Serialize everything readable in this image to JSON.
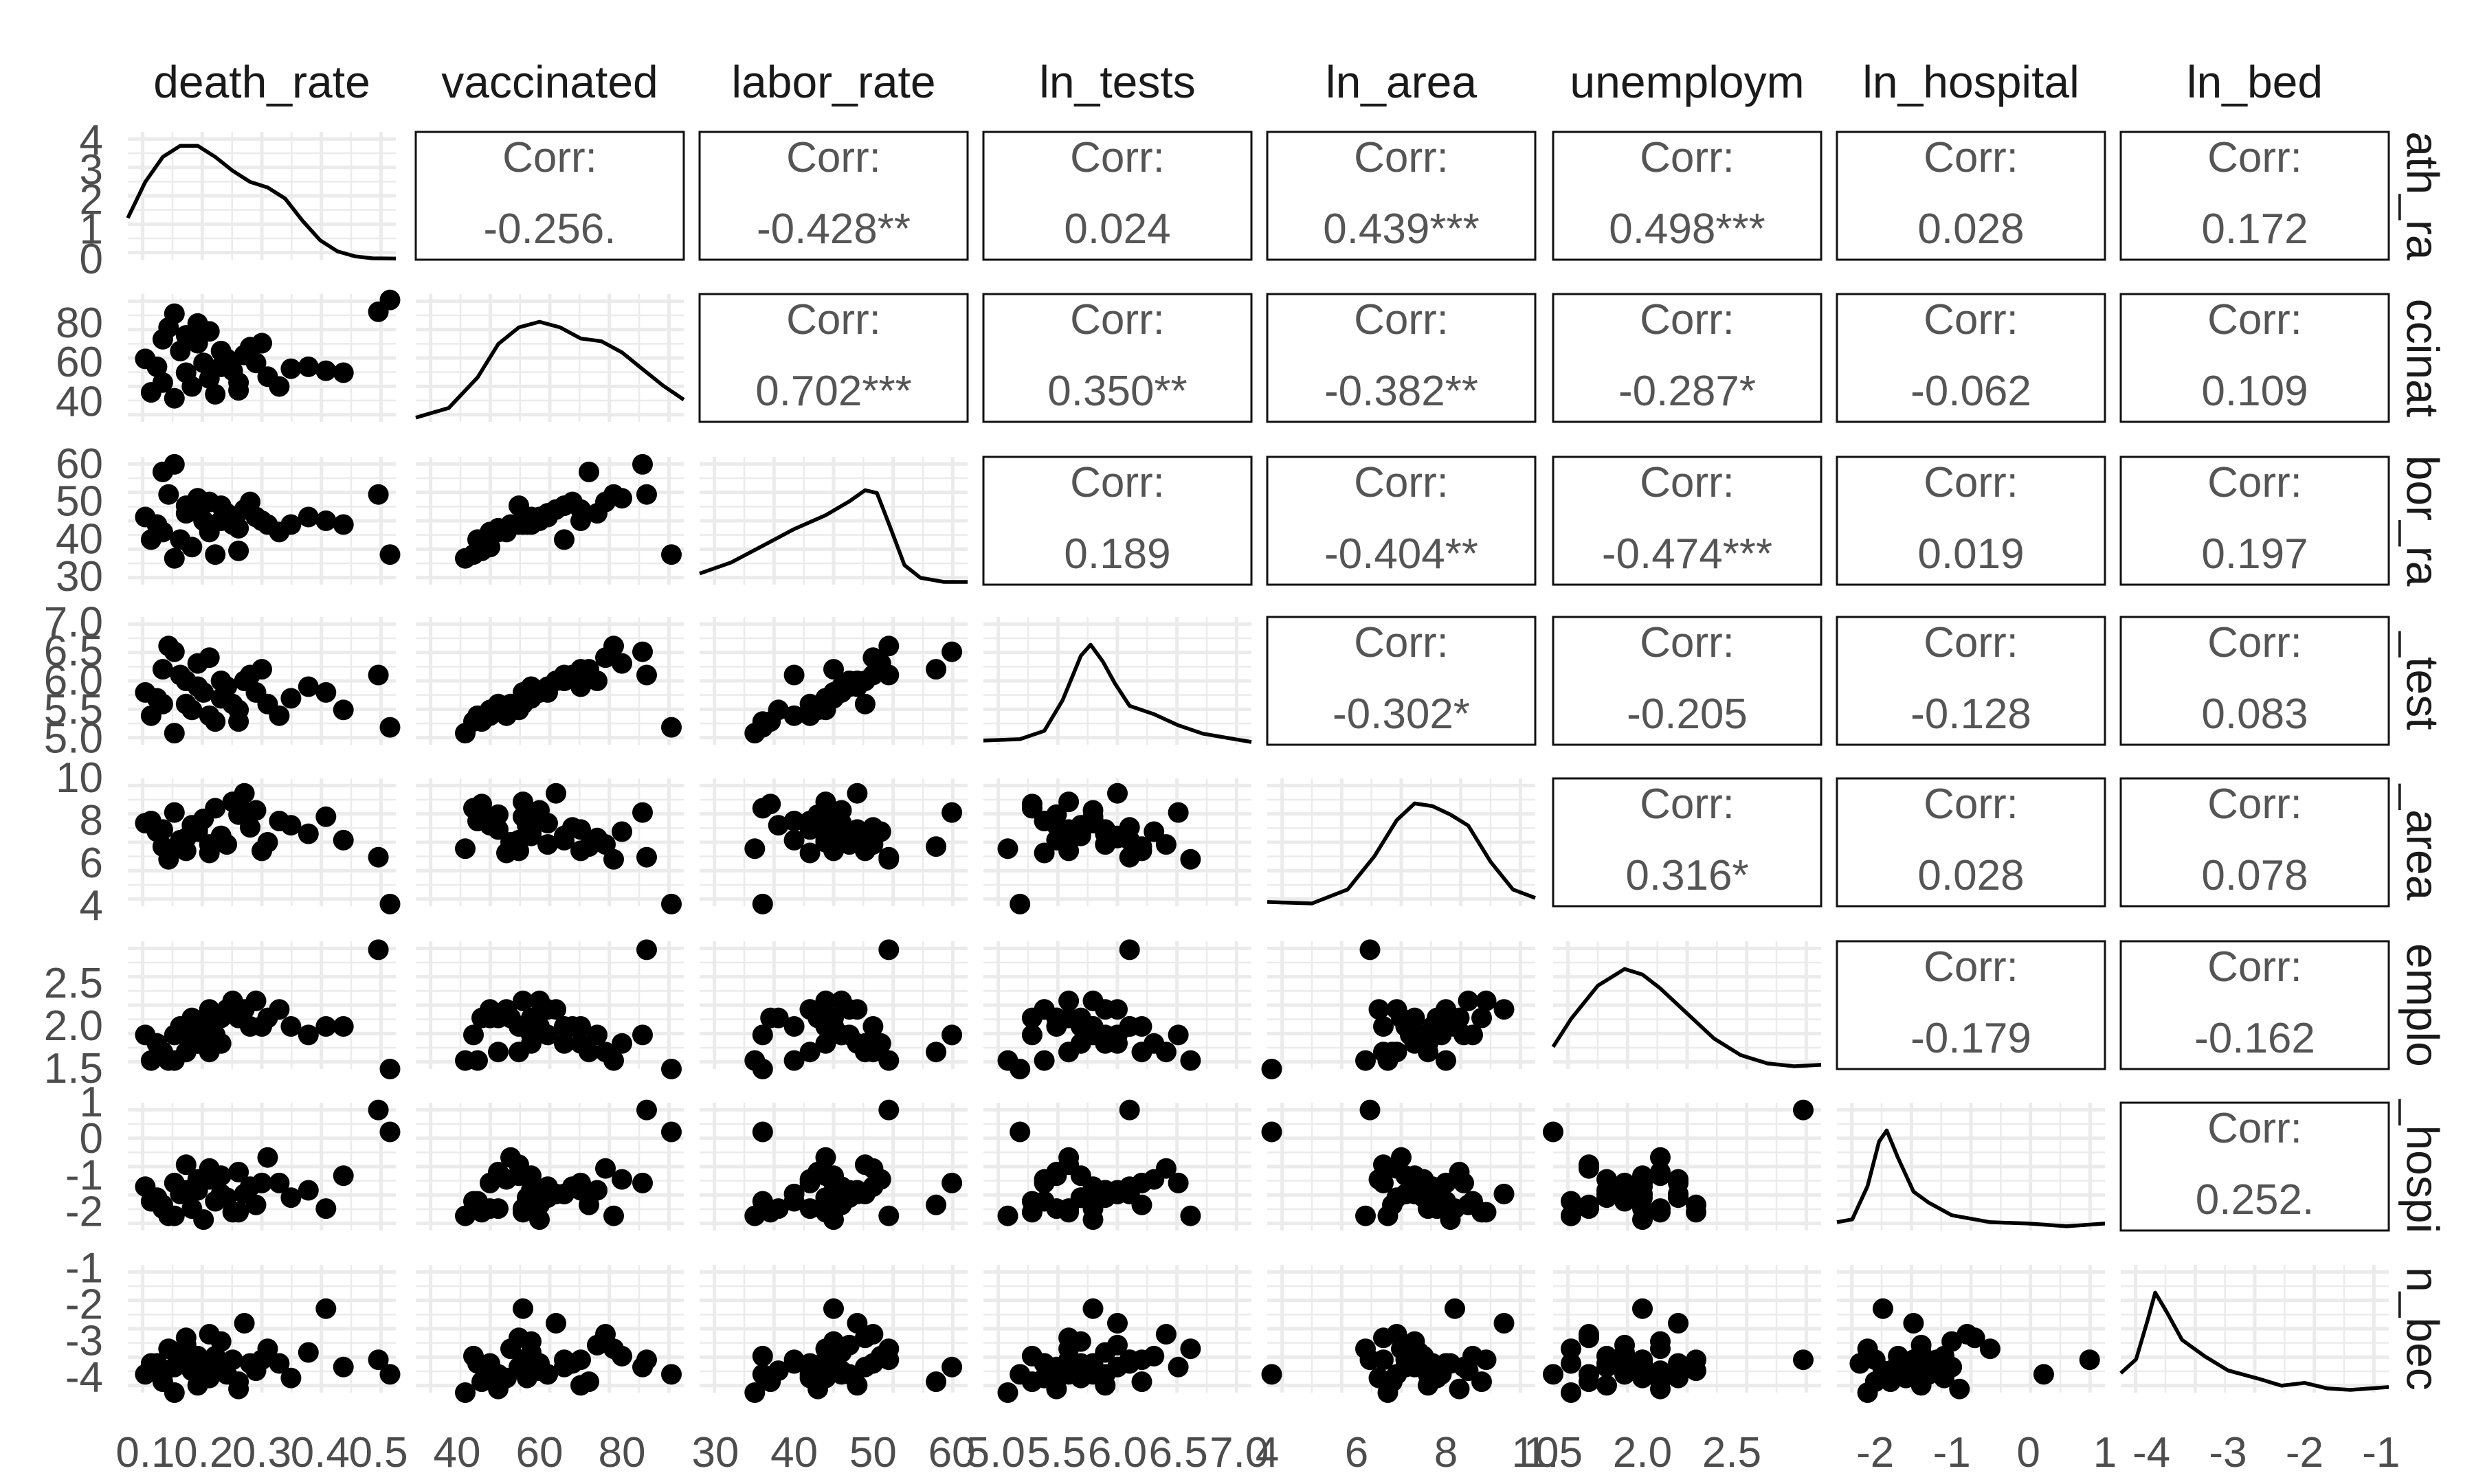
{
  "chart_data": {
    "type": "scatter-matrix",
    "variables": [
      "death_rate",
      "vaccinated",
      "labor_rate",
      "ln_tests",
      "ln_area",
      "unemploym",
      "ln_hospital",
      "ln_bed"
    ],
    "column_labels": [
      "death_rate",
      "vaccinated",
      "labor_rate",
      "ln_tests",
      "ln_area",
      "unemploym",
      "ln_hospital",
      "ln_bed"
    ],
    "row_labels": [
      "ath_ra",
      "ccinat",
      "bor_ra",
      "_test",
      "_area",
      "emplo",
      "_hospi",
      "n_bec"
    ],
    "corr_label": "Corr:",
    "correlations": [
      [
        null,
        "-0.256.",
        "-0.428**",
        "0.024",
        "0.439***",
        "0.498***",
        "0.028",
        "0.172"
      ],
      [
        null,
        null,
        "0.702***",
        "0.350**",
        "-0.382**",
        "-0.287*",
        "-0.062",
        "0.109"
      ],
      [
        null,
        null,
        null,
        "0.189",
        "-0.404**",
        "-0.474***",
        "0.019",
        "0.197"
      ],
      [
        null,
        null,
        null,
        null,
        "-0.302*",
        "-0.205",
        "-0.128",
        "0.083"
      ],
      [
        null,
        null,
        null,
        null,
        null,
        "0.316*",
        "0.028",
        "0.078"
      ],
      [
        null,
        null,
        null,
        null,
        null,
        null,
        "-0.179",
        "-0.162"
      ],
      [
        null,
        null,
        null,
        null,
        null,
        null,
        null,
        "0.252."
      ],
      [
        null,
        null,
        null,
        null,
        null,
        null,
        null,
        null
      ]
    ],
    "ranges": [
      [
        0.07,
        0.53
      ],
      [
        30,
        95
      ],
      [
        28,
        62
      ],
      [
        4.9,
        7.1
      ],
      [
        4,
        10
      ],
      [
        1.5,
        3.0
      ],
      [
        -2.5,
        1.0
      ],
      [
        -4.4,
        -0.9
      ]
    ],
    "x_ticks": [
      [
        "0.1",
        "0.2",
        "0.3",
        "0.4",
        "0.5"
      ],
      [
        "40",
        "60",
        "80"
      ],
      [
        "30",
        "40",
        "50",
        "60"
      ],
      [
        "5.0",
        "5.5",
        "6.0",
        "6.5",
        "7.0"
      ],
      [
        "4",
        "6",
        "8",
        "10"
      ],
      [
        "1.5",
        "2.0",
        "2.5"
      ],
      [
        "-2",
        "-1",
        "0",
        "1"
      ],
      [
        "-4",
        "-3",
        "-2",
        "-1"
      ]
    ],
    "y_ticks": [
      [
        "0",
        "1",
        "2",
        "3",
        "4"
      ],
      [
        "40",
        "60",
        "80"
      ],
      [
        "30",
        "40",
        "50",
        "60"
      ],
      [
        "5.0",
        "5.5",
        "6.0",
        "6.5",
        "7.0"
      ],
      [
        "4",
        "6",
        "8",
        "10"
      ],
      [
        "1.5",
        "2.0",
        "2.5"
      ],
      [
        "-2",
        "-1",
        "0",
        "1"
      ],
      [
        "-4",
        "-3",
        "-2",
        "-1"
      ]
    ],
    "density_y_range": [
      0,
      4.6
    ],
    "density_curves": [
      [
        [
          0.07,
          1.5
        ],
        [
          0.1,
          2.8
        ],
        [
          0.13,
          3.7
        ],
        [
          0.16,
          4.1
        ],
        [
          0.19,
          4.1
        ],
        [
          0.22,
          3.7
        ],
        [
          0.25,
          3.2
        ],
        [
          0.28,
          2.8
        ],
        [
          0.31,
          2.6
        ],
        [
          0.34,
          2.2
        ],
        [
          0.37,
          1.4
        ],
        [
          0.4,
          0.7
        ],
        [
          0.43,
          0.3
        ],
        [
          0.46,
          0.12
        ],
        [
          0.49,
          0.05
        ],
        [
          0.53,
          0.04
        ]
      ],
      [
        [
          30,
          0.15
        ],
        [
          38,
          0.5
        ],
        [
          45,
          1.6
        ],
        [
          50,
          2.8
        ],
        [
          55,
          3.4
        ],
        [
          60,
          3.6
        ],
        [
          65,
          3.4
        ],
        [
          70,
          3.0
        ],
        [
          75,
          2.9
        ],
        [
          80,
          2.5
        ],
        [
          85,
          1.9
        ],
        [
          90,
          1.3
        ],
        [
          95,
          0.8
        ]
      ],
      [
        [
          28,
          0.4
        ],
        [
          32,
          0.8
        ],
        [
          36,
          1.4
        ],
        [
          40,
          2.0
        ],
        [
          44,
          2.5
        ],
        [
          47,
          3.0
        ],
        [
          49,
          3.4
        ],
        [
          50.5,
          3.3
        ],
        [
          52,
          2.2
        ],
        [
          54,
          0.7
        ],
        [
          56,
          0.25
        ],
        [
          59,
          0.1
        ],
        [
          62,
          0.1
        ]
      ],
      [
        [
          4.9,
          0.15
        ],
        [
          5.2,
          0.2
        ],
        [
          5.4,
          0.5
        ],
        [
          5.55,
          1.6
        ],
        [
          5.7,
          3.2
        ],
        [
          5.78,
          3.6
        ],
        [
          5.88,
          3.0
        ],
        [
          5.98,
          2.2
        ],
        [
          6.1,
          1.4
        ],
        [
          6.3,
          1.1
        ],
        [
          6.5,
          0.7
        ],
        [
          6.7,
          0.4
        ],
        [
          6.9,
          0.25
        ],
        [
          7.1,
          0.1
        ]
      ],
      [
        [
          4,
          0.15
        ],
        [
          5,
          0.1
        ],
        [
          5.8,
          0.6
        ],
        [
          6.4,
          1.8
        ],
        [
          6.9,
          3.1
        ],
        [
          7.3,
          3.7
        ],
        [
          7.7,
          3.6
        ],
        [
          8.1,
          3.3
        ],
        [
          8.5,
          2.9
        ],
        [
          9,
          1.6
        ],
        [
          9.5,
          0.6
        ],
        [
          10,
          0.3
        ]
      ],
      [
        [
          1.5,
          0.8
        ],
        [
          1.6,
          1.8
        ],
        [
          1.75,
          3.0
        ],
        [
          1.9,
          3.6
        ],
        [
          2.0,
          3.4
        ],
        [
          2.1,
          2.9
        ],
        [
          2.25,
          2.0
        ],
        [
          2.4,
          1.1
        ],
        [
          2.55,
          0.5
        ],
        [
          2.7,
          0.2
        ],
        [
          2.85,
          0.1
        ],
        [
          3.0,
          0.15
        ]
      ],
      [
        [
          -2.5,
          0.3
        ],
        [
          -2.3,
          0.4
        ],
        [
          -2.1,
          1.6
        ],
        [
          -1.95,
          3.2
        ],
        [
          -1.85,
          3.6
        ],
        [
          -1.7,
          2.6
        ],
        [
          -1.5,
          1.4
        ],
        [
          -1.3,
          1.0
        ],
        [
          -1.0,
          0.55
        ],
        [
          -0.5,
          0.3
        ],
        [
          0,
          0.25
        ],
        [
          0.5,
          0.15
        ],
        [
          1.0,
          0.25
        ]
      ],
      [
        [
          -4.4,
          0.7
        ],
        [
          -4.2,
          1.2
        ],
        [
          -4.05,
          2.6
        ],
        [
          -3.95,
          3.6
        ],
        [
          -3.8,
          2.9
        ],
        [
          -3.6,
          1.9
        ],
        [
          -3.3,
          1.3
        ],
        [
          -3.0,
          0.8
        ],
        [
          -2.6,
          0.5
        ],
        [
          -2.3,
          0.25
        ],
        [
          -2.0,
          0.35
        ],
        [
          -1.7,
          0.15
        ],
        [
          -1.4,
          0.1
        ],
        [
          -0.9,
          0.2
        ]
      ]
    ],
    "points": [
      [
        0.1,
        62,
        46,
        5.8,
        7.9,
        1.9,
        -1.3,
        -3.9
      ],
      [
        0.12,
        58,
        44,
        5.7,
        7.5,
        1.8,
        -1.6,
        -3.6
      ],
      [
        0.13,
        72,
        58,
        6.2,
        6.8,
        1.7,
        -1.8,
        -4.1
      ],
      [
        0.14,
        78,
        52,
        6.6,
        6.2,
        1.6,
        -2.1,
        -3.2
      ],
      [
        0.15,
        85,
        60,
        6.5,
        8.4,
        1.9,
        -1.2,
        -3.7
      ],
      [
        0.16,
        66,
        40,
        6.1,
        7.1,
        2.0,
        -1.5,
        -3.5
      ],
      [
        0.17,
        55,
        49,
        5.6,
        6.6,
        1.7,
        -0.7,
        -2.9
      ],
      [
        0.18,
        48,
        38,
        5.5,
        7.8,
        2.1,
        -1.9,
        -3.8
      ],
      [
        0.19,
        70,
        48,
        5.9,
        7.6,
        1.8,
        -1.4,
        -4.2
      ],
      [
        0.2,
        60,
        45,
        5.8,
        8.1,
        2.0,
        -2.2,
        -3.6
      ],
      [
        0.21,
        52,
        42,
        5.4,
        6.5,
        2.2,
        -1.1,
        -4.0
      ],
      [
        0.22,
        44,
        36,
        5.3,
        8.6,
        1.9,
        -1.7,
        -3.4
      ],
      [
        0.23,
        58,
        45,
        5.7,
        7.3,
        2.1,
        -1.0,
        -3.0
      ],
      [
        0.24,
        62,
        47,
        5.9,
        6.9,
        2.2,
        -1.6,
        -3.9
      ],
      [
        0.25,
        56,
        44,
        5.6,
        8.9,
        2.3,
        -2.0,
        -3.5
      ],
      [
        0.26,
        50,
        43,
        5.5,
        8.3,
        2.1,
        -0.9,
        -4.3
      ],
      [
        0.27,
        64,
        48,
        6.0,
        9.3,
        2.2,
        -1.5,
        -2.5
      ],
      [
        0.28,
        68,
        50,
        6.1,
        7.7,
        2.0,
        -1.3,
        -3.6
      ],
      [
        0.29,
        60,
        46,
        5.8,
        8.5,
        2.3,
        -1.8,
        -3.8
      ],
      [
        0.31,
        53,
        44,
        5.6,
        7.0,
        2.1,
        -0.5,
        -3.2
      ],
      [
        0.33,
        48,
        42,
        5.4,
        8.0,
        2.2,
        -1.2,
        -3.6
      ],
      [
        0.35,
        57,
        44,
        5.7,
        7.8,
        2.0,
        -1.6,
        -4.0
      ],
      [
        0.38,
        58,
        46,
        5.9,
        7.4,
        1.9,
        -1.4,
        -3.3
      ],
      [
        0.41,
        56,
        45,
        5.8,
        8.2,
        2.0,
        -1.9,
        -2.1
      ],
      [
        0.44,
        55,
        44,
        5.5,
        7.1,
        2.0,
        -1.0,
        -3.7
      ],
      [
        0.5,
        86,
        52,
        6.1,
        6.3,
        2.9,
        0.8,
        -3.5
      ],
      [
        0.52,
        92,
        36,
        5.2,
        4.1,
        1.5,
        0.2,
        -3.9
      ],
      [
        0.11,
        45,
        40,
        5.4,
        8.0,
        1.6,
        -1.7,
        -3.6
      ],
      [
        0.13,
        50,
        42,
        5.6,
        7.6,
        1.7,
        -1.9,
        -3.9
      ],
      [
        0.15,
        42,
        35,
        5.1,
        6.7,
        1.6,
        -2.1,
        -4.4
      ],
      [
        0.17,
        74,
        47,
        6.0,
        7.2,
        1.9,
        -1.4,
        -3.1
      ],
      [
        0.19,
        80,
        51,
        6.3,
        7.5,
        1.8,
        -1.1,
        -3.4
      ],
      [
        0.21,
        76,
        50,
        6.4,
        6.9,
        1.7,
        -0.8,
        -2.8
      ],
      [
        0.23,
        66,
        49,
        6.0,
        7.3,
        1.8,
        -1.5,
        -3.7
      ],
      [
        0.26,
        46,
        37,
        5.3,
        8.8,
        2.1,
        -2.0,
        -4.1
      ],
      [
        0.3,
        70,
        45,
        6.2,
        6.6,
        2.0,
        -1.2,
        -3.5
      ]
    ]
  }
}
